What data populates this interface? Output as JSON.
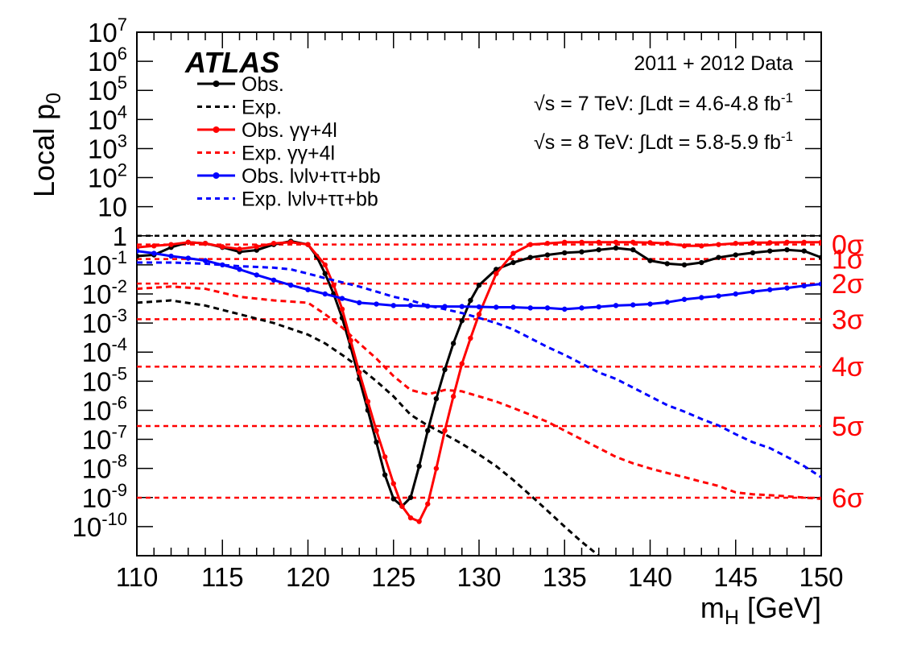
{
  "chart_data": {
    "type": "line",
    "experiment_label": "ATLAS",
    "ylabel": "Local p",
    "ylabel_sub": "0",
    "xlabel": "m",
    "xlabel_sub": "H",
    "xlabel_unit": " [GeV]",
    "y_scale": "log",
    "xlim": [
      110,
      150
    ],
    "ylim": [
      1e-11,
      10000000.0
    ],
    "grid": false,
    "legend_placement": "top-left",
    "x_ticks": [
      110,
      115,
      120,
      125,
      130,
      135,
      140,
      145,
      150
    ],
    "x_tick_labels": [
      "110",
      "115",
      "120",
      "125",
      "130",
      "135",
      "140",
      "145",
      "150"
    ],
    "y_ticks": [
      {
        "value": 10000000.0,
        "base": "10",
        "exp": "7"
      },
      {
        "value": 1000000.0,
        "base": "10",
        "exp": "6"
      },
      {
        "value": 100000.0,
        "base": "10",
        "exp": "5"
      },
      {
        "value": 10000.0,
        "base": "10",
        "exp": "4"
      },
      {
        "value": 1000.0,
        "base": "10",
        "exp": "3"
      },
      {
        "value": 100.0,
        "base": "10",
        "exp": "2"
      },
      {
        "value": 10,
        "base": "10",
        "exp": ""
      },
      {
        "value": 1,
        "base": "1",
        "exp": ""
      },
      {
        "value": 0.1,
        "base": "10",
        "exp": "-1"
      },
      {
        "value": 0.01,
        "base": "10",
        "exp": "-2"
      },
      {
        "value": 0.001,
        "base": "10",
        "exp": "-3"
      },
      {
        "value": 0.0001,
        "base": "10",
        "exp": "-4"
      },
      {
        "value": 1e-05,
        "base": "10",
        "exp": "-5"
      },
      {
        "value": 1e-06,
        "base": "10",
        "exp": "-6"
      },
      {
        "value": 1e-07,
        "base": "10",
        "exp": "-7"
      },
      {
        "value": 1e-08,
        "base": "10",
        "exp": "-8"
      },
      {
        "value": 1e-09,
        "base": "10",
        "exp": "-9"
      },
      {
        "value": 1e-10,
        "base": "10",
        "exp": "-10"
      }
    ],
    "info_lines": [
      {
        "text": "2011 + 2012 Data"
      },
      {
        "prefix": "√s = 7 TeV:  ∫Ldt = 4.6-4.8 fb",
        "sup": "-1"
      },
      {
        "prefix": "√s = 8 TeV:  ∫Ldt = 5.8-5.9 fb",
        "sup": "-1"
      }
    ],
    "sigma_lines": [
      {
        "label": "0σ",
        "p": 0.5
      },
      {
        "label": "1σ",
        "p": 0.1587
      },
      {
        "label": "2σ",
        "p": 0.02275
      },
      {
        "label": "3σ",
        "p": 0.00135
      },
      {
        "label": "4σ",
        "p": 3.17e-05
      },
      {
        "label": "5σ",
        "p": 2.87e-07
      },
      {
        "label": "6σ",
        "p": 9.87e-10
      }
    ],
    "series": [
      {
        "name": "Obs.",
        "color": "#000000",
        "style": "solid",
        "markers": true,
        "x": [
          110,
          111,
          112,
          113,
          114,
          115,
          116,
          117,
          118,
          119,
          120,
          120.5,
          121,
          121.5,
          122,
          122.5,
          123,
          123.5,
          124,
          124.5,
          125,
          125.5,
          126,
          126.5,
          127,
          127.5,
          128,
          128.5,
          129,
          129.5,
          130,
          131,
          132,
          133,
          134,
          135,
          136,
          137,
          138,
          139,
          140,
          141,
          142,
          143,
          144,
          145,
          146,
          147,
          148,
          149,
          150
        ],
        "y": [
          0.2,
          0.22,
          0.4,
          0.6,
          0.55,
          0.4,
          0.28,
          0.32,
          0.5,
          0.65,
          0.5,
          0.2,
          0.05,
          0.01,
          0.0015,
          0.00015,
          1.2e-05,
          1e-06,
          8e-08,
          6e-09,
          9e-10,
          5e-10,
          1e-09,
          1.2e-08,
          2e-07,
          2.5e-06,
          2.5e-05,
          0.0002,
          0.0012,
          0.006,
          0.02,
          0.07,
          0.12,
          0.18,
          0.22,
          0.26,
          0.28,
          0.33,
          0.38,
          0.33,
          0.14,
          0.11,
          0.1,
          0.12,
          0.18,
          0.22,
          0.26,
          0.3,
          0.33,
          0.3,
          0.18
        ]
      },
      {
        "name": "Exp.",
        "color": "#000000",
        "style": "dashed",
        "markers": false,
        "x": [
          110,
          112,
          114,
          116,
          118,
          120,
          121,
          122,
          123,
          124,
          125,
          126,
          127,
          128,
          129,
          130,
          131,
          132,
          133,
          134,
          135,
          136,
          137,
          138
        ],
        "y": [
          0.005,
          0.006,
          0.004,
          0.002,
          0.001,
          0.0004,
          0.0002,
          8e-05,
          3e-05,
          1e-05,
          3e-06,
          7e-07,
          3e-07,
          1.5e-07,
          7e-08,
          3e-08,
          1.2e-08,
          4e-09,
          1.2e-09,
          3.5e-10,
          1e-10,
          3e-11,
          1e-11,
          3e-12
        ]
      },
      {
        "name": "Obs. γγ+4l",
        "color": "#ff0000",
        "style": "solid",
        "markers": true,
        "x": [
          110,
          111,
          112,
          113,
          114,
          115,
          116,
          117,
          118,
          119,
          120,
          121,
          121.5,
          122,
          122.5,
          123,
          123.5,
          124,
          124.5,
          125,
          125.5,
          126,
          126.5,
          127,
          127.5,
          128,
          128.5,
          129,
          129.5,
          130,
          131,
          132,
          133,
          134,
          135,
          136,
          137,
          138,
          139,
          140,
          141,
          142,
          143,
          144,
          145,
          146,
          147,
          148,
          149,
          150
        ],
        "y": [
          0.4,
          0.45,
          0.5,
          0.6,
          0.55,
          0.42,
          0.35,
          0.42,
          0.55,
          0.6,
          0.5,
          0.1,
          0.02,
          0.003,
          0.00025,
          2e-05,
          2e-06,
          2e-07,
          2.5e-08,
          3e-09,
          5e-10,
          2e-10,
          1.5e-10,
          6e-10,
          1e-08,
          2e-07,
          3e-06,
          4e-05,
          0.0003,
          0.002,
          0.05,
          0.25,
          0.5,
          0.55,
          0.6,
          0.6,
          0.6,
          0.6,
          0.6,
          0.58,
          0.55,
          0.45,
          0.45,
          0.5,
          0.55,
          0.58,
          0.58,
          0.6,
          0.6,
          0.6
        ]
      },
      {
        "name": "Exp. γγ+4l",
        "color": "#ff0000",
        "style": "dashed",
        "markers": false,
        "x": [
          110,
          112,
          114,
          116,
          118,
          120,
          121,
          122,
          123,
          124,
          125,
          126,
          127,
          128,
          129,
          130,
          131,
          132,
          133,
          134,
          135,
          136,
          137,
          138,
          139,
          140,
          141,
          142,
          143,
          144,
          145,
          146,
          147,
          148,
          149,
          150
        ],
        "y": [
          0.015,
          0.018,
          0.015,
          0.008,
          0.006,
          0.005,
          0.002,
          0.0007,
          0.0002,
          6e-05,
          1.5e-05,
          5e-06,
          3.5e-06,
          5e-06,
          4.5e-06,
          3e-06,
          2e-06,
          1.2e-06,
          7e-07,
          4e-07,
          2e-07,
          1e-07,
          5e-08,
          2.5e-08,
          1.5e-08,
          1e-08,
          7e-09,
          5e-09,
          3.5e-09,
          2.5e-09,
          1.5e-09,
          1.3e-09,
          1.2e-09,
          1.1e-09,
          1e-09,
          9e-10
        ]
      },
      {
        "name": "Obs. lνlν+ττ+bb",
        "color": "#0000ff",
        "style": "solid",
        "markers": true,
        "x": [
          110,
          111,
          112,
          113,
          114,
          115,
          116,
          117,
          118,
          119,
          120,
          121,
          122,
          123,
          124,
          125,
          126,
          127,
          128,
          129,
          130,
          131,
          132,
          133,
          134,
          135,
          136,
          137,
          138,
          139,
          140,
          141,
          142,
          143,
          144,
          145,
          146,
          147,
          148,
          149,
          150
        ],
        "y": [
          0.3,
          0.25,
          0.2,
          0.17,
          0.14,
          0.1,
          0.07,
          0.045,
          0.03,
          0.02,
          0.014,
          0.01,
          0.007,
          0.005,
          0.0045,
          0.004,
          0.004,
          0.0038,
          0.0037,
          0.0037,
          0.0036,
          0.0035,
          0.0035,
          0.0033,
          0.0033,
          0.003,
          0.0033,
          0.0036,
          0.004,
          0.0042,
          0.0045,
          0.0052,
          0.0065,
          0.0075,
          0.0085,
          0.01,
          0.012,
          0.014,
          0.016,
          0.019,
          0.022
        ]
      },
      {
        "name": "Exp. lνlν+ττ+bb",
        "color": "#0000ff",
        "style": "dashed",
        "markers": false,
        "x": [
          110,
          112,
          114,
          116,
          118,
          119,
          120,
          121,
          122,
          123,
          124,
          125,
          126,
          127,
          128,
          129,
          130,
          131,
          132,
          133,
          134,
          135,
          136,
          137,
          138,
          139,
          140,
          141,
          142,
          143,
          144,
          145,
          146,
          147,
          148,
          149,
          150
        ],
        "y": [
          0.12,
          0.12,
          0.11,
          0.09,
          0.08,
          0.07,
          0.05,
          0.035,
          0.025,
          0.018,
          0.012,
          0.008,
          0.006,
          0.004,
          0.003,
          0.0022,
          0.0015,
          0.001,
          0.0006,
          0.0003,
          0.00015,
          8e-05,
          4e-05,
          2e-05,
          1.2e-05,
          6e-06,
          3e-06,
          1.5e-06,
          9e-07,
          5e-07,
          3e-07,
          1.5e-07,
          8e-08,
          5e-08,
          2.5e-08,
          1.2e-08,
          5e-09
        ]
      }
    ]
  }
}
